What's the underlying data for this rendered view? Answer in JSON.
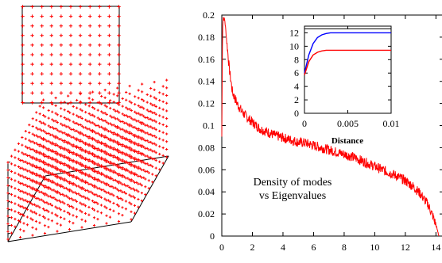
{
  "colors": {
    "lattice": "#ff0000",
    "series_main": "#ff0000",
    "inset_blue": "#0000ff",
    "inset_red": "#ff0000",
    "axes": "#000000"
  },
  "chart_data": [
    {
      "type": "scatter",
      "description_role": "2D square lattice of points (11 x 11) with a frame",
      "grid_size": 11,
      "marker": "+"
    },
    {
      "type": "scatter",
      "description_role": "3D cubic lattice of points with perspective box",
      "grid_size": 11,
      "marker": "+"
    },
    {
      "type": "line",
      "xlim": [
        0,
        14.5
      ],
      "ylim": [
        0,
        0.2
      ],
      "xticks": [
        "0",
        "2",
        "4",
        "6",
        "8",
        "10",
        "12",
        "14"
      ],
      "yticks": [
        "0",
        "0.02",
        "0.04",
        "0.06",
        "0.08",
        "0.1",
        "0.12",
        "0.14",
        "0.16",
        "0.18",
        "0.2"
      ],
      "annotation_line1": "Density of modes",
      "annotation_line2": "vs Eigenvalues",
      "series": [
        {
          "color": "#ff0000",
          "x": [
            0.0,
            0.05,
            0.1,
            0.2,
            0.3,
            0.4,
            0.5,
            0.7,
            1.0,
            1.3,
            1.6,
            2.0,
            2.5,
            3.0,
            3.5,
            4.0,
            4.5,
            5.0,
            5.5,
            6.0,
            6.5,
            7.0,
            7.5,
            8.0,
            8.5,
            9.0,
            9.5,
            10.0,
            10.5,
            11.0,
            11.5,
            12.0,
            12.5,
            13.0,
            13.5,
            13.8,
            14.0,
            14.2
          ],
          "y": [
            0.09,
            0.19,
            0.198,
            0.195,
            0.18,
            0.165,
            0.15,
            0.13,
            0.12,
            0.113,
            0.108,
            0.103,
            0.097,
            0.094,
            0.091,
            0.089,
            0.087,
            0.085,
            0.084,
            0.082,
            0.08,
            0.078,
            0.076,
            0.074,
            0.072,
            0.069,
            0.066,
            0.063,
            0.06,
            0.057,
            0.054,
            0.05,
            0.045,
            0.038,
            0.028,
            0.018,
            0.01,
            0.0
          ]
        }
      ]
    },
    {
      "type": "line",
      "role": "inset",
      "xlim": [
        0,
        0.01
      ],
      "ylim": [
        0,
        13
      ],
      "xticks": [
        "0",
        "0.005",
        "0.01"
      ],
      "yticks": [
        "0",
        "2",
        "4",
        "6",
        "8",
        "10",
        "12"
      ],
      "xlabel": "Distance",
      "series": [
        {
          "color": "#0000ff",
          "x": [
            0,
            0.0005,
            0.001,
            0.0015,
            0.002,
            0.0025,
            0.003,
            0.004,
            0.005,
            0.006,
            0.008,
            0.01
          ],
          "y": [
            6.0,
            8.7,
            10.4,
            11.3,
            11.7,
            11.9,
            12.0,
            12.0,
            12.0,
            12.0,
            12.0,
            12.0
          ]
        },
        {
          "color": "#ff0000",
          "x": [
            0,
            0.0005,
            0.001,
            0.0015,
            0.002,
            0.0025,
            0.003,
            0.004,
            0.005,
            0.006,
            0.008,
            0.01
          ],
          "y": [
            5.7,
            7.7,
            8.7,
            9.1,
            9.3,
            9.4,
            9.4,
            9.4,
            9.4,
            9.4,
            9.4,
            9.4
          ]
        }
      ],
      "reference_line_y": 12.6
    }
  ]
}
